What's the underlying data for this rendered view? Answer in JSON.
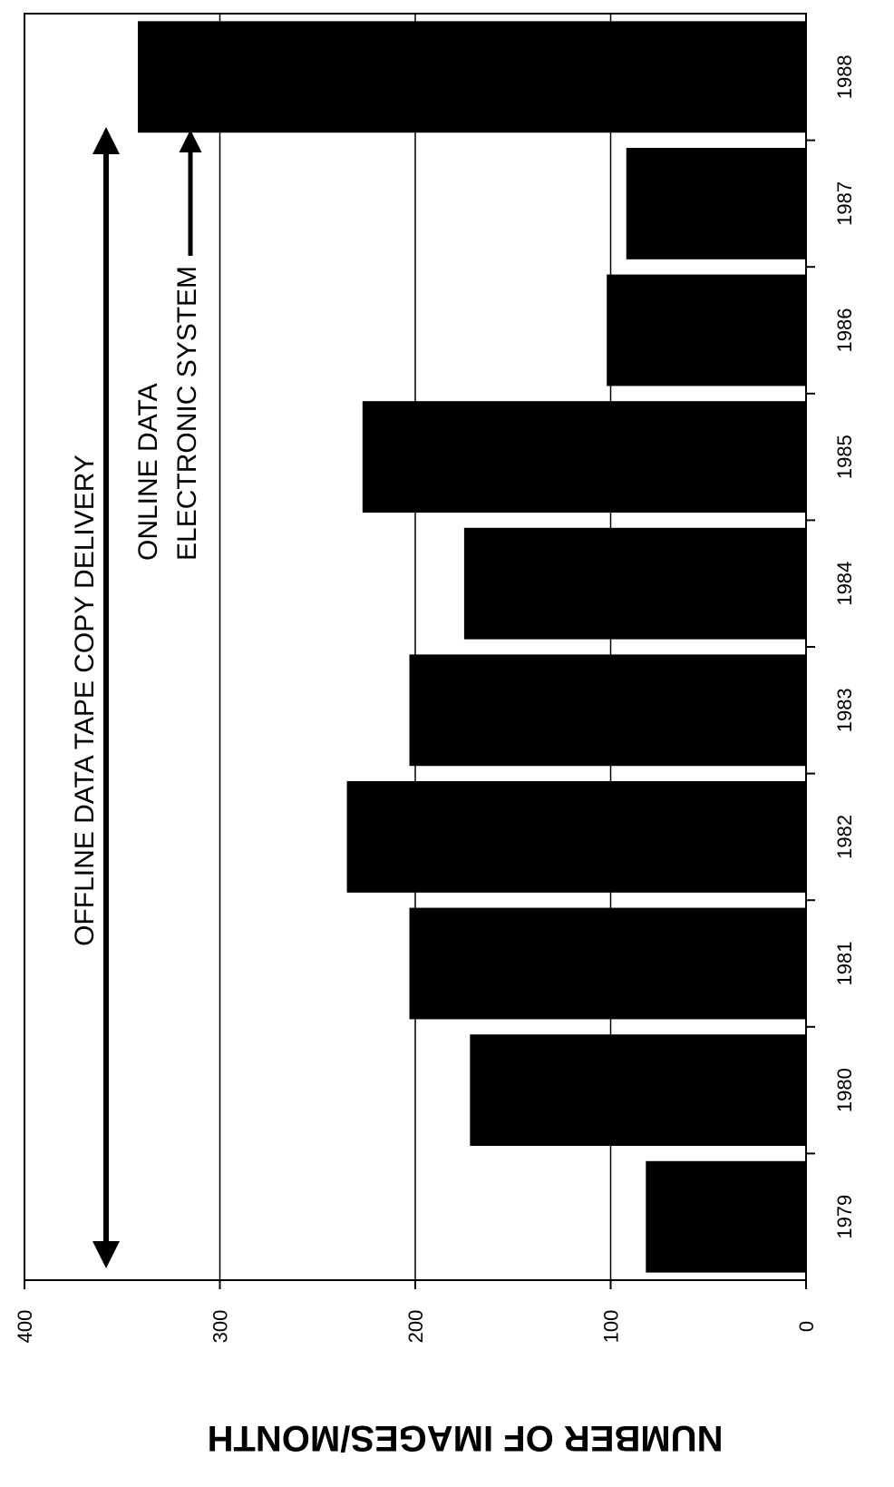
{
  "chart_data": {
    "type": "bar",
    "orientation": "rotated-90-clockwise",
    "categories": [
      "1979",
      "1980",
      "1981",
      "1982",
      "1983",
      "1984",
      "1985",
      "1986",
      "1987",
      "1988"
    ],
    "values": [
      82,
      172,
      203,
      235,
      203,
      175,
      227,
      102,
      92,
      342
    ],
    "ylabel": "NUMBER OF IMAGES/MONTH",
    "xlabel": "",
    "ylim": [
      0,
      400
    ],
    "yticks": [
      "0",
      "100",
      "200",
      "300",
      "400"
    ],
    "grid": true,
    "bar_color": "#000000",
    "annotations": [
      {
        "text": "OFFLINE DATA TAPE COPY DELIVERY",
        "arrow": "double-headed",
        "span": [
          "1979",
          "1988"
        ]
      },
      {
        "text": "ONLINE DATA",
        "arrow": "none"
      },
      {
        "text": "ELECTRONIC SYSTEM",
        "arrow": "single-headed",
        "points_toward": "1988"
      }
    ]
  }
}
